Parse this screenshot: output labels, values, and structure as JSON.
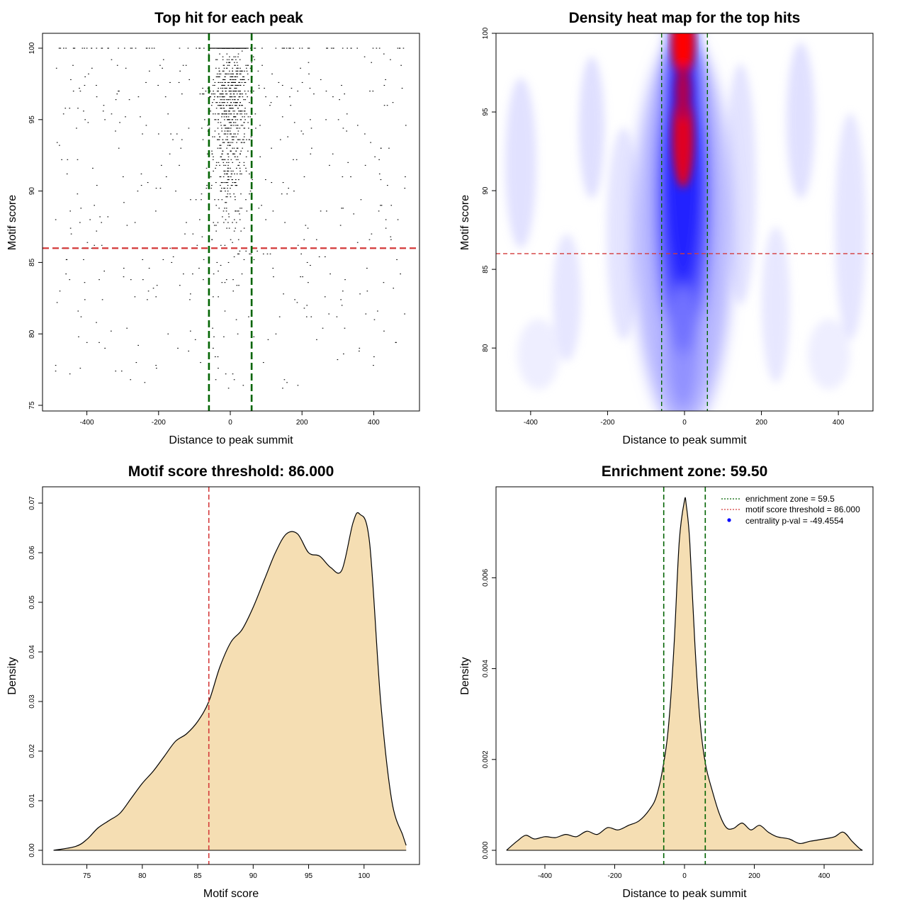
{
  "chart_data": [
    {
      "id": "scatter",
      "type": "scatter",
      "title": "Top hit for each peak",
      "xlabel": "Distance to peak summit",
      "ylabel": "Motif score",
      "xlim": [
        -500,
        500
      ],
      "ylim": [
        75,
        100
      ],
      "xticks": [
        -400,
        -200,
        0,
        200,
        400
      ],
      "yticks": [
        75,
        80,
        85,
        90,
        95,
        100
      ],
      "hline": 86,
      "vlines": [
        -59.5,
        59.5
      ],
      "colors": {
        "points": "#000000",
        "threshold": "#d43a3a",
        "zone": "#006400"
      }
    },
    {
      "id": "heatmap",
      "type": "heatmap",
      "title": "Density heat map for the top hits",
      "xlabel": "Distance to peak summit",
      "ylabel": "Motif score",
      "xlim": [
        -490,
        490
      ],
      "ylim": [
        76,
        100
      ],
      "xticks": [
        -400,
        -200,
        0,
        200,
        400
      ],
      "yticks": [
        80,
        85,
        90,
        95,
        100
      ],
      "hline": 86,
      "vlines": [
        -59.5,
        59.5
      ],
      "colors": {
        "low": "#ffffff",
        "mid": "#0000ff",
        "high": "#ff0000",
        "threshold": "#d43a3a",
        "zone": "#006400"
      }
    },
    {
      "id": "score-density",
      "type": "area",
      "title": "Motif score threshold: 86.000",
      "xlabel": "Motif score",
      "ylabel": "Density",
      "xlim": [
        71,
        105
      ],
      "ylim": [
        0,
        0.07
      ],
      "xticks": [
        75,
        80,
        85,
        90,
        95,
        100
      ],
      "yticks": [
        0,
        0.01,
        0.02,
        0.03,
        0.04,
        0.05,
        0.06,
        0.07
      ],
      "ytick_labels": [
        "0.00",
        "0.01",
        "0.02",
        "0.03",
        "0.04",
        "0.05",
        "0.06",
        "0.07"
      ],
      "vline": 86,
      "x": [
        72,
        74,
        75,
        76,
        77,
        78,
        79,
        80,
        81,
        82,
        83,
        84,
        85,
        86,
        87,
        88,
        89,
        90,
        91,
        92,
        93,
        94,
        95,
        96,
        97,
        98,
        99,
        99.6,
        100.5,
        101.5,
        102.5,
        103.5,
        103.8
      ],
      "y": [
        0,
        0.0008,
        0.0022,
        0.0045,
        0.006,
        0.0075,
        0.0105,
        0.0135,
        0.016,
        0.019,
        0.022,
        0.0235,
        0.026,
        0.03,
        0.037,
        0.042,
        0.0445,
        0.049,
        0.0545,
        0.06,
        0.0638,
        0.0638,
        0.06,
        0.0593,
        0.057,
        0.0565,
        0.066,
        0.0678,
        0.062,
        0.03,
        0.01,
        0.003,
        0.001
      ],
      "colors": {
        "fill": "#f5deb3",
        "line": "#000000",
        "threshold": "#d43a3a"
      }
    },
    {
      "id": "distance-density",
      "type": "area",
      "title": "Enrichment zone: 59.50",
      "xlabel": "Distance to peak summit",
      "ylabel": "Density",
      "xlim": [
        -540,
        540
      ],
      "ylim": [
        0,
        0.0078
      ],
      "xticks": [
        -400,
        -200,
        0,
        200,
        400
      ],
      "yticks": [
        0,
        0.002,
        0.004,
        0.006
      ],
      "ytick_labels": [
        "0.000",
        "0.002",
        "0.004",
        "0.006"
      ],
      "vlines": [
        -59.5,
        59.5
      ],
      "x": [
        -510,
        -480,
        -455,
        -430,
        -400,
        -370,
        -340,
        -310,
        -280,
        -250,
        -220,
        -190,
        -160,
        -130,
        -100,
        -80,
        -60,
        -45,
        -30,
        -15,
        0,
        5,
        15,
        30,
        45,
        60,
        80,
        100,
        120,
        140,
        165,
        190,
        215,
        240,
        265,
        300,
        330,
        360,
        400,
        430,
        455,
        480,
        500,
        510
      ],
      "y": [
        0,
        0.0002,
        0.00033,
        0.00025,
        0.0003,
        0.00028,
        0.00035,
        0.0003,
        0.00042,
        0.00035,
        0.0005,
        0.00045,
        0.00055,
        0.00065,
        0.0009,
        0.0012,
        0.0019,
        0.0028,
        0.0045,
        0.0068,
        0.0077,
        0.0076,
        0.0068,
        0.0045,
        0.0028,
        0.0019,
        0.0013,
        0.0008,
        0.0005,
        0.00048,
        0.0006,
        0.00045,
        0.00055,
        0.0004,
        0.0003,
        0.00025,
        0.00015,
        0.0002,
        0.00025,
        0.0003,
        0.0004,
        0.0002,
        5e-05,
        0
      ],
      "colors": {
        "fill": "#f5deb3",
        "line": "#000000",
        "zone": "#006400"
      },
      "legend": {
        "position": "top-right",
        "entries": [
          {
            "label": "enrichment zone = 59.5",
            "color": "#006400",
            "style": "dotted"
          },
          {
            "label": "motif score threshold = 86.000",
            "color": "#d43a3a",
            "style": "dotted"
          },
          {
            "label": "centrality p-val = -49.4554",
            "color": "#0000ff",
            "style": "point"
          }
        ]
      }
    }
  ]
}
